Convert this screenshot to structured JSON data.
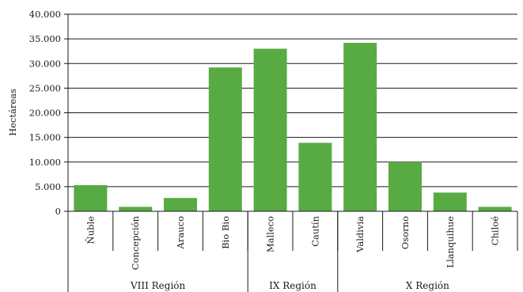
{
  "chart_data": {
    "type": "bar",
    "title": "",
    "xlabel": "",
    "ylabel": "Hectáreas",
    "ylim": [
      0,
      40000
    ],
    "yticks": [
      0,
      5000,
      10000,
      15000,
      20000,
      25000,
      30000,
      35000,
      40000
    ],
    "ytick_labels": [
      "0",
      "5.000",
      "10.000",
      "15.000",
      "20.000",
      "25.000",
      "30.000",
      "35.000",
      "40.000"
    ],
    "grid": true,
    "legend": "none",
    "bar_color": "#58ab43",
    "categories": [
      "Ñuble",
      "Concepción",
      "Arauco",
      "Bio Bio",
      "Malleco",
      "Cautín",
      "Valdivia",
      "Osorno",
      "Llanquihue",
      "Chiloé"
    ],
    "values": [
      5300,
      900,
      2700,
      29200,
      33000,
      13900,
      34200,
      10000,
      3800,
      900
    ],
    "groups": [
      {
        "label": "VIII Región",
        "count": 4
      },
      {
        "label": "IX Región",
        "count": 2
      },
      {
        "label": "X Región",
        "count": 4
      }
    ]
  }
}
